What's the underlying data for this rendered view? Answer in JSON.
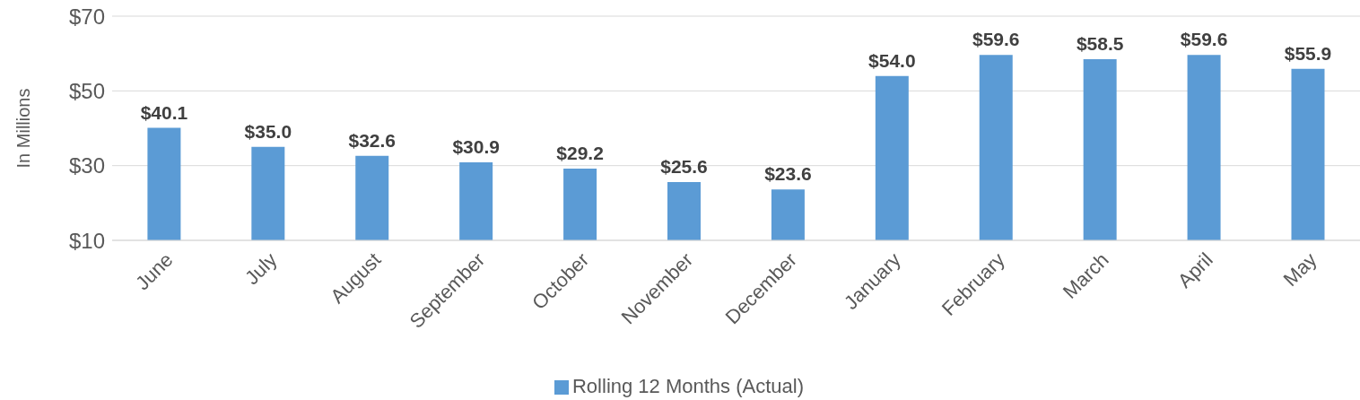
{
  "chart_data": {
    "type": "bar",
    "ylabel": "In Millions",
    "categories": [
      "June",
      "July",
      "August",
      "September",
      "October",
      "November",
      "December",
      "January",
      "February",
      "March",
      "April",
      "May"
    ],
    "series": [
      {
        "name": "Rolling 12 Months (Actual)",
        "color": "#5b9bd5",
        "values": [
          40.1,
          35.0,
          32.6,
          30.9,
          29.2,
          25.6,
          23.6,
          54.0,
          59.6,
          58.5,
          59.6,
          55.9
        ],
        "value_labels": [
          "$40.1",
          "$35.0",
          "$32.6",
          "$30.9",
          "$29.2",
          "$25.6",
          "$23.6",
          "$54.0",
          "$59.6",
          "$58.5",
          "$59.6",
          "$55.9"
        ]
      }
    ],
    "ylim": [
      10,
      70
    ],
    "yticks": [
      {
        "value": 10,
        "label": "$10"
      },
      {
        "value": 30,
        "label": "$30"
      },
      {
        "value": 50,
        "label": "$50"
      },
      {
        "value": 70,
        "label": "$70"
      }
    ],
    "grid": "y",
    "legend": "bottom"
  }
}
